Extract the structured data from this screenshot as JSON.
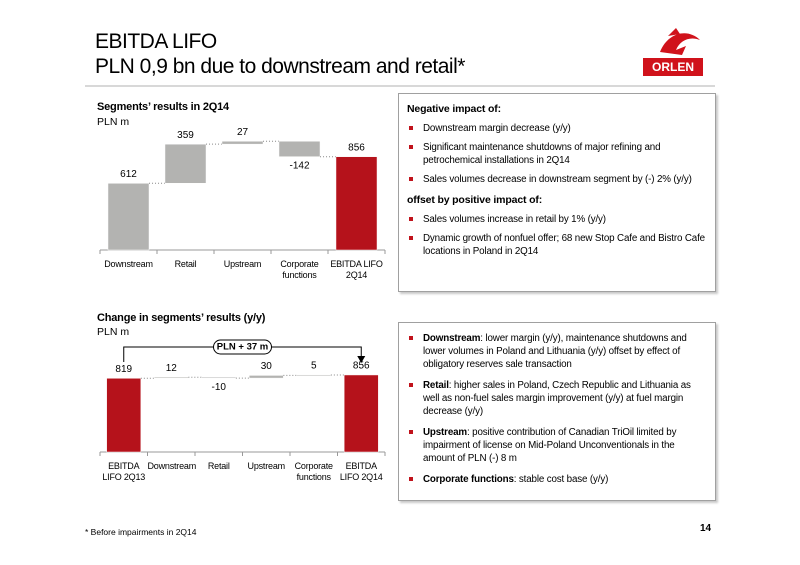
{
  "header": {
    "title": "EBITDA LIFO",
    "subtitle": "PLN 0,9 bn due to downstream and retail*"
  },
  "logo": "ORLEN",
  "chart_data": [
    {
      "type": "waterfall",
      "title": "Segments’ results in 2Q14",
      "subtitle": "PLN m",
      "categories": [
        "Downstream",
        "Retail",
        "Upstream",
        "Corporate functions",
        "EBITDA LIFO 2Q14"
      ],
      "values": [
        612,
        359,
        27,
        -142,
        856
      ],
      "colors": [
        "#b3b3b1",
        "#b3b3b1",
        "#b3b3b1",
        "#b3b3b1",
        "#b5121b"
      ]
    },
    {
      "type": "waterfall",
      "title": "Change in segments’ results (y/y)",
      "subtitle": "PLN m",
      "categories": [
        "EBITDA LIFO 2Q13",
        "Downstream",
        "Retail",
        "Upstream",
        "Corporate functions",
        "EBITDA LIFO 2Q14"
      ],
      "values": [
        819,
        12,
        -10,
        30,
        5,
        856
      ],
      "colors": [
        "#b5121b",
        "#b3b3b1",
        "#b3b3b1",
        "#b3b3b1",
        "#b3b3b1",
        "#b5121b"
      ],
      "annotation": "PLN + 37 m"
    }
  ],
  "boxes": [
    {
      "sections": [
        {
          "heading": "Negative impact of:",
          "items": [
            "Downstream margin decrease (y/y)",
            "Significant maintenance shutdowns of major refining and petrochemical installations in 2Q14",
            "Sales volumes decrease  in downstream segment by (-) 2% (y/y)"
          ]
        },
        {
          "heading": "offset by positive impact of:",
          "items": [
            "Sales volumes increase in retail by 1% (y/y)",
            "Dynamic growth of nonfuel offer; 68 new Stop Cafe and Bistro Cafe locations in Poland in 2Q14"
          ]
        }
      ]
    },
    {
      "items": [
        {
          "label": "Downstream",
          "text": ": lower margin (y/y), maintenance shutdowns and lower volumes in Poland and Lithuania (y/y) offset by effect of obligatory reserves sale transaction"
        },
        {
          "label": "Retail",
          "text": ": higher sales in Poland, Czech Republic and Lithuania as well as non-fuel sales margin improvement (y/y) at fuel margin decrease (y/y)"
        },
        {
          "label": "Upstream",
          "text": ": positive contribution of Canadian TriOil limited by impairment of license on Mid-Poland Unconventionals in the amount of PLN (-) 8 m"
        },
        {
          "label": "Corporate functions",
          "text": ": stable cost base (y/y)"
        }
      ]
    }
  ],
  "footnote": "* Before impairments in 2Q14",
  "page_number": "14"
}
